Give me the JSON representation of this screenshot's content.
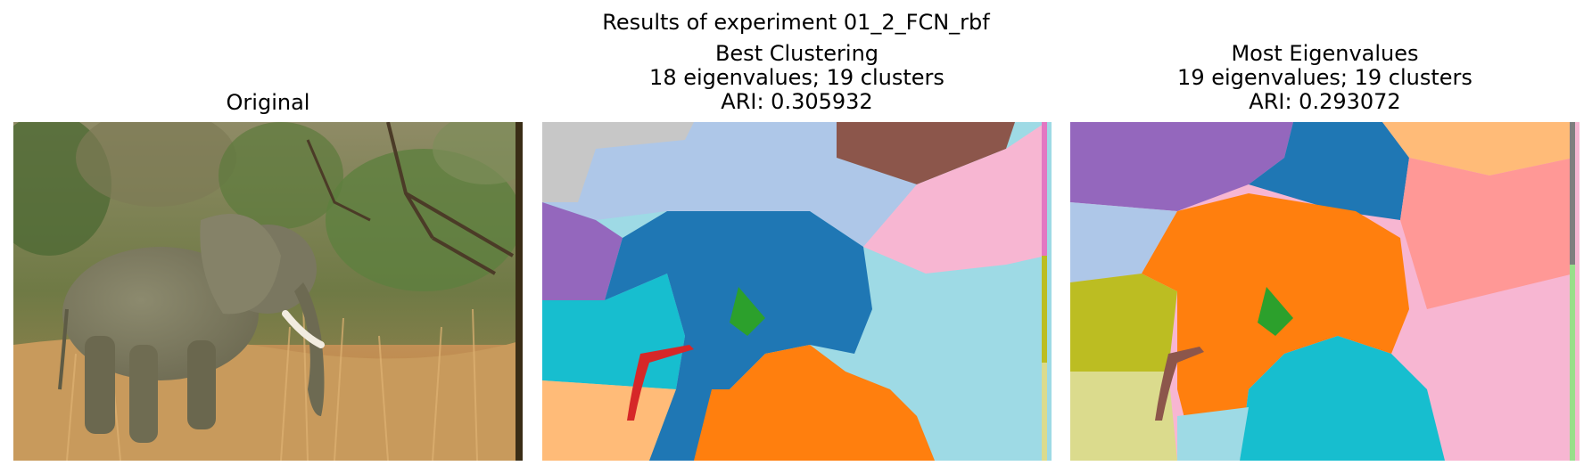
{
  "figure": {
    "suptitle": "Results of experiment 01_2_FCN_rbf"
  },
  "panels": [
    {
      "title_lines": [
        "Original"
      ],
      "image": "photo of an elephant walking through dry grass in front of green trees"
    },
    {
      "title_lines": [
        "Best Clustering",
        "18 eigenvalues; 19 clusters",
        "ARI: 0.305932"
      ],
      "image": "segmentation map of the elephant photo"
    },
    {
      "title_lines": [
        "Most Eigenvalues",
        "19 eigenvalues; 19 clusters",
        "ARI: 0.293072"
      ],
      "image": "segmentation map of the elephant photo"
    }
  ],
  "palette": {
    "tab_blue": "#1f77b4",
    "tab_orange": "#ff7f0e",
    "tab_green": "#2ca02c",
    "tab_red": "#d62728",
    "tab_purple": "#9467bd",
    "tab_brown": "#8c564b",
    "tab_pink": "#f7b6d2",
    "tab_salmon": "#ff9896",
    "tab_cyan": "#17becf",
    "tab_lightcyan": "#9edae5",
    "tab_lightblue": "#aec7e8",
    "tab_peach": "#ffbb78",
    "tab_olive": "#bcbd22",
    "tab_lightolive": "#dbdb8d",
    "tab_gray": "#c7c7c7",
    "tab_lightgreen": "#98df8a",
    "tab_magenta": "#e377c2"
  }
}
